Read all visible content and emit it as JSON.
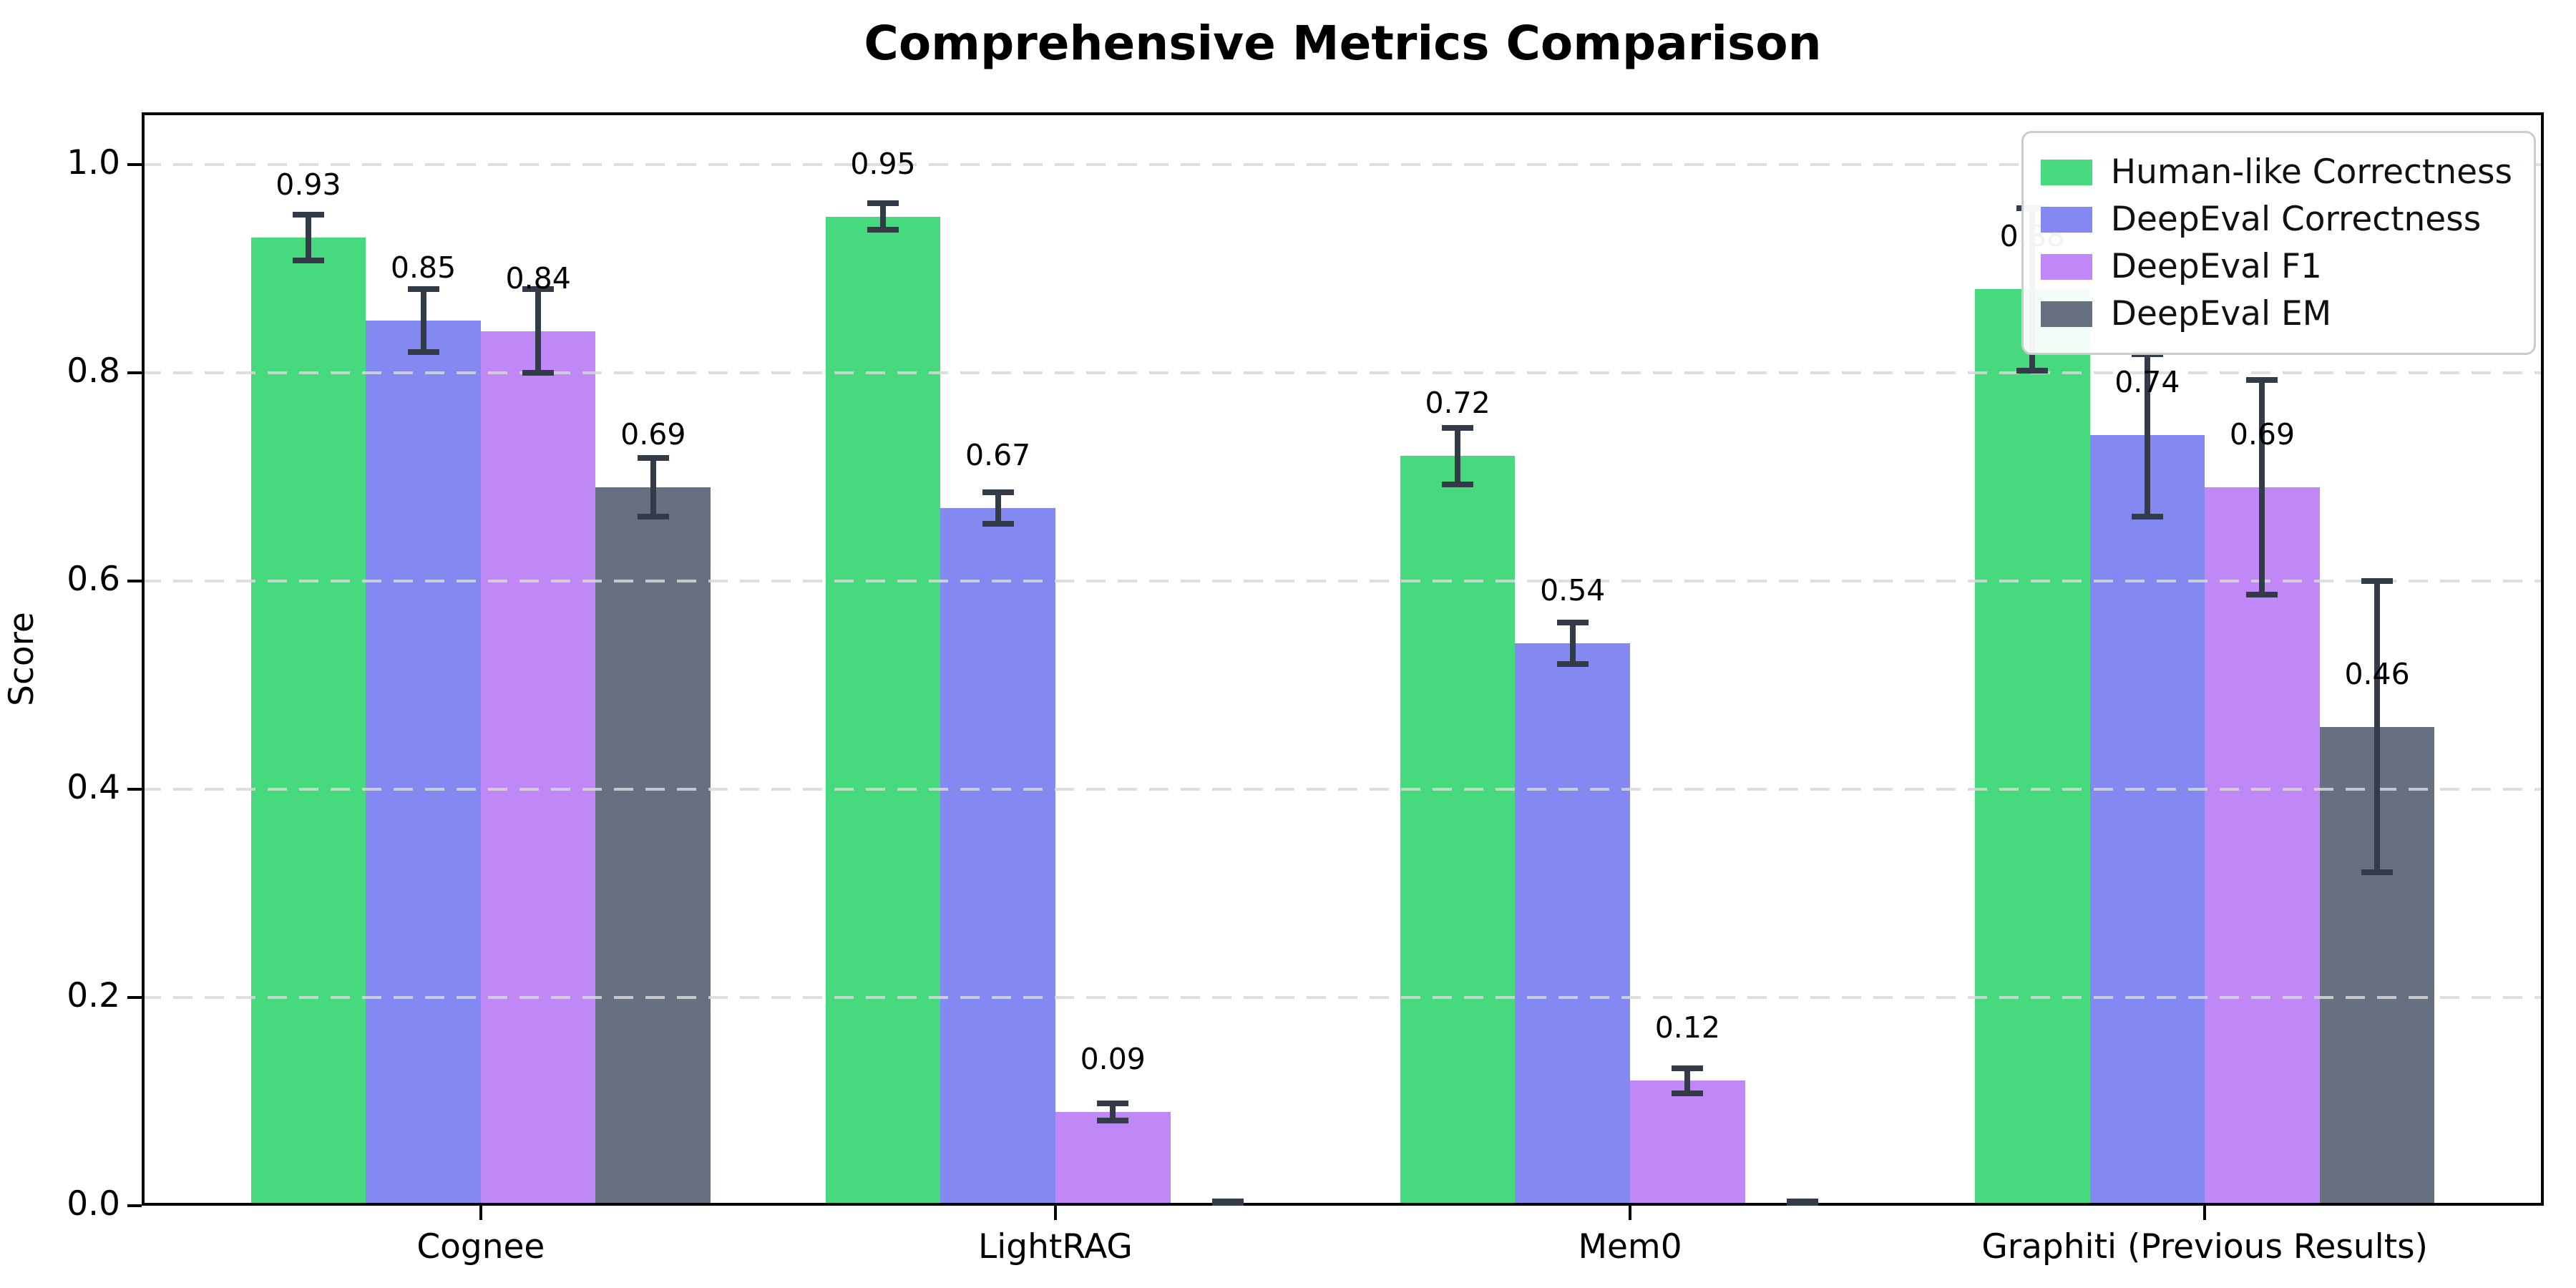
{
  "chart_data": {
    "type": "bar",
    "title": "Comprehensive Metrics Comparison",
    "xlabel": "",
    "ylabel": "Score",
    "ylim": [
      0.0,
      1.05
    ],
    "xlim": [
      -0.59,
      3.59
    ],
    "grid": "horizontal-dashed",
    "legend_position": "upper-right",
    "yticks": [
      {
        "value": 0.0,
        "label": "0.0"
      },
      {
        "value": 0.2,
        "label": "0.2"
      },
      {
        "value": 0.4,
        "label": "0.4"
      },
      {
        "value": 0.6,
        "label": "0.6"
      },
      {
        "value": 0.8,
        "label": "0.8"
      },
      {
        "value": 1.0,
        "label": "1.0"
      }
    ],
    "categories": [
      "Cognee",
      "LightRAG",
      "Mem0",
      "Graphiti (Previous Results)"
    ],
    "series": [
      {
        "name": "Human-like Correctness",
        "color": "#46d97d",
        "values": [
          0.93,
          0.95,
          0.72,
          0.88
        ],
        "errors": [
          0.022,
          0.013,
          0.027,
          0.078
        ],
        "labels": [
          "0.93",
          "0.95",
          "0.72",
          "0.88"
        ]
      },
      {
        "name": "DeepEval Correctness",
        "color": "#8389f0",
        "values": [
          0.85,
          0.67,
          0.54,
          0.74
        ],
        "errors": [
          0.03,
          0.015,
          0.02,
          0.078
        ],
        "labels": [
          "0.85",
          "0.67",
          "0.54",
          "0.74"
        ]
      },
      {
        "name": "DeepEval F1",
        "color": "#c087f7",
        "values": [
          0.84,
          0.09,
          0.12,
          0.69
        ],
        "errors": [
          0.04,
          0.008,
          0.012,
          0.103
        ],
        "labels": [
          "0.84",
          "0.09",
          "0.12",
          "0.69"
        ]
      },
      {
        "name": "DeepEval EM",
        "color": "#667080",
        "values": [
          0.69,
          0.0,
          0.0,
          0.46
        ],
        "errors": [
          0.028,
          0.004,
          0.004,
          0.14
        ],
        "labels": [
          "0.69",
          null,
          null,
          "0.46"
        ]
      }
    ],
    "errorbar_color": "#333b49",
    "gridline_color": "#d8d8d8"
  }
}
